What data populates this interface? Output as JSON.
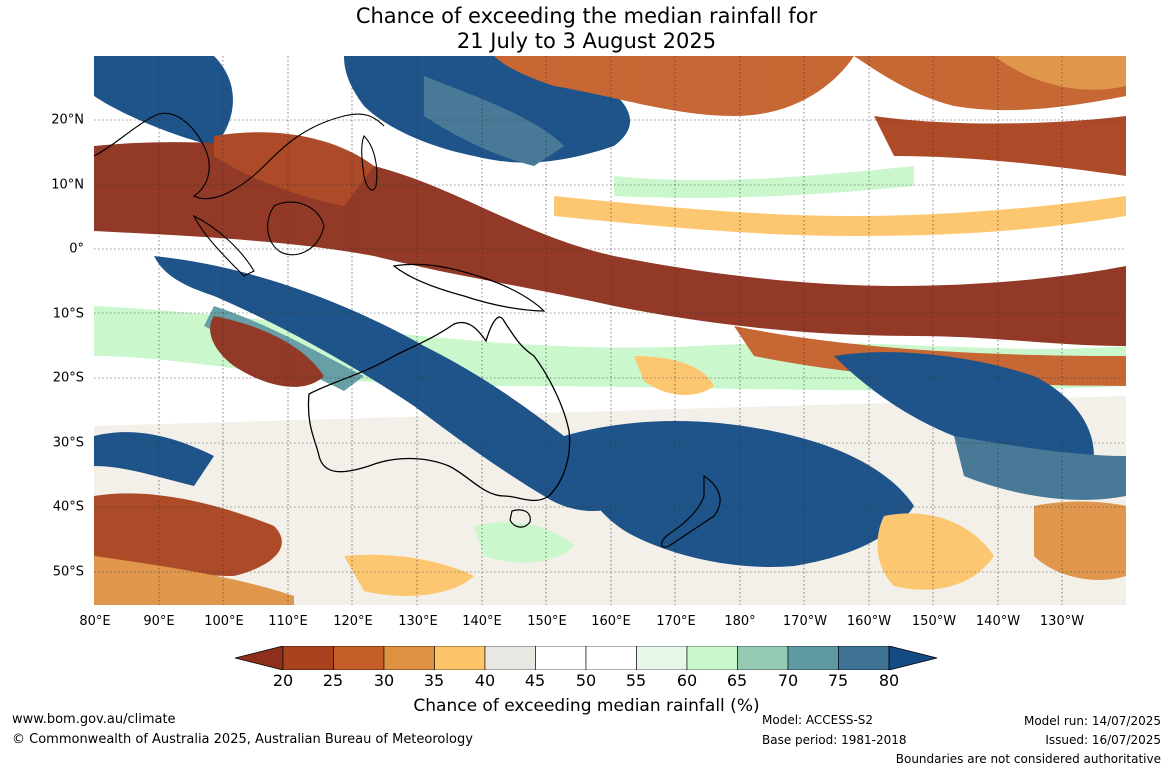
{
  "title": {
    "line1": "Chance of exceeding the median rainfall for",
    "line2": "21 July to 3 August 2025"
  },
  "map": {
    "latitudes": [
      "20°N",
      "10°N",
      "0°",
      "10°S",
      "20°S",
      "30°S",
      "40°S",
      "50°S"
    ],
    "longitudes": [
      "80°E",
      "90°E",
      "100°E",
      "110°E",
      "120°E",
      "130°E",
      "140°E",
      "150°E",
      "160°E",
      "170°E",
      "180°",
      "170°W",
      "160°W",
      "150°W",
      "140°W",
      "130°W"
    ]
  },
  "colorbar": {
    "ticks": [
      "20",
      "25",
      "30",
      "35",
      "40",
      "45",
      "50",
      "55",
      "60",
      "65",
      "70",
      "75",
      "80"
    ],
    "colors": [
      "#8e2f1c",
      "#a9421e",
      "#c45f2a",
      "#df9142",
      "#fdc56a",
      "#e9e7e2",
      "#ffffff",
      "#ffffff",
      "#e6f6e8",
      "#c9f7cb",
      "#96cbb3",
      "#5f9aa2",
      "#3f7393",
      "#134b84"
    ],
    "label": "Chance of exceeding median rainfall (%)"
  },
  "footer": {
    "website": "www.bom.gov.au/climate",
    "copyright": "© Commonwealth of Australia 2025, Australian Bureau of Meteorology",
    "model": "Model: ACCESS-S2",
    "base_period": "Base period: 1981-2018",
    "model_run": "Model run: 14/07/2025",
    "issued": "Issued: 16/07/2025",
    "disclaimer": "Boundaries are not considered authoritative"
  }
}
